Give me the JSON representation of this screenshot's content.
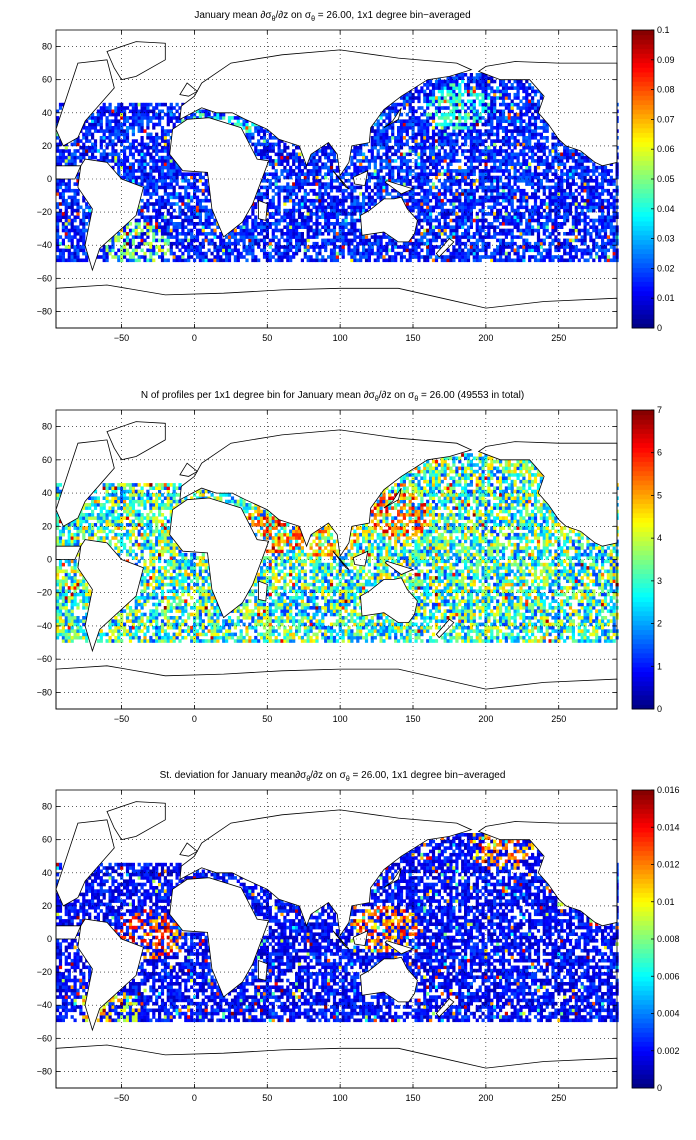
{
  "chart_data": [
    {
      "type": "heatmap",
      "title_parts": [
        "January mean ",
        "∂σ",
        "θ",
        "/∂z on σ",
        "θ",
        " = 26.00, 1x1 degree bin−averaged"
      ],
      "x_range": [
        -95,
        290
      ],
      "y_range": [
        -90,
        90
      ],
      "x_ticks": [
        -50,
        0,
        50,
        100,
        150,
        200,
        250
      ],
      "y_ticks": [
        80,
        60,
        40,
        20,
        0,
        -20,
        -40,
        -60,
        -80
      ],
      "grid": true,
      "colormap": "jet",
      "colorbar_range": [
        0,
        0.1
      ],
      "colorbar_ticks": [
        "0.1",
        "0.09",
        "0.08",
        "0.07",
        "0.06",
        "0.05",
        "0.04",
        "0.03",
        "0.02",
        "0.01",
        "0"
      ],
      "colorbar_values": [
        0.1,
        0.09,
        0.08,
        0.07,
        0.06,
        0.05,
        0.04,
        0.03,
        0.02,
        0.01,
        0
      ],
      "dominant_level": 0.015,
      "high_level_regions": [
        [
          0.05,
          20,
          35
        ],
        [
          0.06,
          -40,
          -42
        ],
        [
          0.05,
          180,
          42
        ]
      ]
    },
    {
      "type": "heatmap",
      "title_parts": [
        "N of profiles per 1x1 degree bin for January mean ",
        "∂σ",
        "θ",
        "/∂z on σ",
        "θ",
        " = 26.00 (49553 in total)"
      ],
      "x_range": [
        -95,
        290
      ],
      "y_range": [
        -90,
        90
      ],
      "x_ticks": [
        -50,
        0,
        50,
        100,
        150,
        200,
        250
      ],
      "y_ticks": [
        80,
        60,
        40,
        20,
        0,
        -20,
        -40,
        -60,
        -80
      ],
      "grid": true,
      "colormap": "jet",
      "colorbar_range": [
        0,
        7
      ],
      "colorbar_ticks": [
        "7",
        "6",
        "5",
        "4",
        "3",
        "2",
        "1",
        "0"
      ],
      "colorbar_values": [
        7,
        6,
        5,
        4,
        3,
        2,
        1,
        0
      ],
      "total_profiles": 49553,
      "dominant_level": 3,
      "high_level_regions": [
        [
          6.5,
          140,
          25
        ],
        [
          6.5,
          55,
          18
        ],
        [
          6,
          90,
          15
        ]
      ]
    },
    {
      "type": "heatmap",
      "title_parts": [
        "St. deviation for January mean",
        "∂σ",
        "θ",
        "/∂z on σ",
        "θ",
        " = 26.00, 1x1 degree bin−averaged"
      ],
      "x_range": [
        -95,
        290
      ],
      "y_range": [
        -90,
        90
      ],
      "x_ticks": [
        -50,
        0,
        50,
        100,
        150,
        200,
        250
      ],
      "y_ticks": [
        80,
        60,
        40,
        20,
        0,
        -20,
        -40,
        -60,
        -80
      ],
      "grid": true,
      "colormap": "jet",
      "colorbar_range": [
        0,
        0.016
      ],
      "colorbar_ticks": [
        "0.016",
        "0.014",
        "0.012",
        "0.01",
        "0.008",
        "0.006",
        "0.004",
        "0.002",
        "0"
      ],
      "colorbar_values": [
        0.016,
        0.014,
        0.012,
        0.01,
        0.008,
        0.006,
        0.004,
        0.002,
        0
      ],
      "dominant_level": 0.002,
      "high_level_regions": [
        [
          0.015,
          -30,
          2
        ],
        [
          0.014,
          130,
          5
        ],
        [
          0.014,
          210,
          55
        ],
        [
          0.012,
          -60,
          -45
        ]
      ]
    }
  ]
}
